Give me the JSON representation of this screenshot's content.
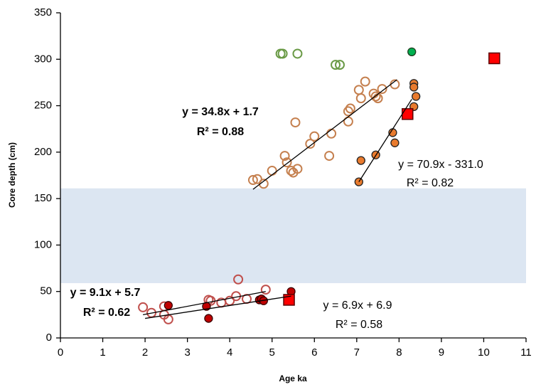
{
  "chart_data": {
    "type": "scatter",
    "x_label": "Age ka",
    "y_label": "Core depth (cm)",
    "xlim": [
      0,
      11
    ],
    "xticks": [
      0,
      1,
      2,
      3,
      4,
      5,
      6,
      7,
      8,
      9,
      10,
      11
    ],
    "ylim": [
      0,
      350
    ],
    "yticks": [
      0,
      50,
      100,
      150,
      200,
      250,
      300,
      350
    ],
    "shaded_range": {
      "ylim": [
        59,
        161
      ],
      "color": "#dce6f2"
    },
    "series": [
      {
        "marker": "circle",
        "fill": "none",
        "color": "#6a9a46",
        "x": [
          5.2,
          5.25,
          5.6,
          6.5,
          6.6
        ],
        "values": [
          306,
          306,
          306,
          294,
          294
        ]
      },
      {
        "marker": "circle",
        "fill": "#00b050",
        "color": "#1f3d1f",
        "x": [
          8.3
        ],
        "values": [
          308
        ]
      },
      {
        "marker": "circle",
        "fill": "none",
        "color": "#c5804f",
        "x": [
          4.55,
          4.65,
          4.8,
          5.0,
          5.3,
          5.35,
          5.45,
          5.5,
          5.6,
          5.55,
          5.9,
          6.0,
          6.35,
          6.4,
          6.8,
          6.8,
          6.85,
          7.05,
          7.1,
          7.2,
          7.4,
          7.5,
          7.6,
          7.9,
          7.45
        ],
        "values": [
          170,
          171,
          166,
          180,
          196,
          189,
          180,
          178,
          182,
          232,
          209,
          217,
          196,
          220,
          233,
          244,
          247,
          267,
          258,
          276,
          263,
          258,
          268,
          273,
          260
        ]
      },
      {
        "marker": "circle",
        "fill": "#e97b2e",
        "color": "#222222",
        "x": [
          7.05,
          7.1,
          7.45,
          7.85,
          7.9,
          8.35,
          8.35,
          8.4,
          8.35
        ],
        "values": [
          168,
          191,
          197,
          221,
          210,
          274,
          270,
          260,
          249
        ]
      },
      {
        "marker": "circle",
        "fill": "none",
        "color": "#c0504d",
        "x": [
          1.95,
          2.15,
          2.45,
          2.45,
          2.55,
          3.5,
          3.55,
          3.8,
          4.0,
          4.15,
          4.2,
          4.4,
          4.85
        ],
        "values": [
          33,
          27,
          25,
          34,
          20,
          41,
          40,
          38,
          40,
          45,
          63,
          42,
          52
        ]
      },
      {
        "marker": "circle",
        "fill": "#c00000",
        "color": "#3a0000",
        "x": [
          2.55,
          3.45,
          3.5,
          4.7,
          4.75,
          4.8,
          5.45
        ],
        "values": [
          35,
          34,
          21,
          41,
          42,
          40,
          50
        ]
      },
      {
        "marker": "square",
        "fill": "#ff0000",
        "color": "#5a0000",
        "x": [
          10.25,
          8.2,
          5.4
        ],
        "values": [
          301,
          241,
          41
        ]
      }
    ],
    "trendlines": [
      {
        "x": [
          4.55,
          7.95
        ],
        "values": [
          160,
          278
        ]
      },
      {
        "x": [
          7.05,
          8.3
        ],
        "values": [
          168,
          257
        ]
      },
      {
        "x": [
          1.95,
          4.85
        ],
        "values": [
          25,
          50
        ]
      },
      {
        "x": [
          2.0,
          5.45
        ],
        "values": [
          21,
          45
        ]
      }
    ],
    "annotations": [
      {
        "text": "y = 34.8x + 1.7",
        "color": "#ff0000",
        "bold": true
      },
      {
        "text": "R² = 0.88",
        "color": "#ff0000",
        "bold": true
      },
      {
        "text": "y = 70.9x - 331.0",
        "color": "#000000",
        "bold": false
      },
      {
        "text": "R² = 0.82",
        "color": "#000000",
        "bold": false
      },
      {
        "text": "y = 9.1x + 5.7",
        "color": "#ff0000",
        "bold": true
      },
      {
        "text": "R² = 0.62",
        "color": "#ff0000",
        "bold": true
      },
      {
        "text": "y = 6.9x + 6.9",
        "color": "#000000",
        "bold": false
      },
      {
        "text": "R² = 0.58",
        "color": "#000000",
        "bold": false
      }
    ]
  }
}
